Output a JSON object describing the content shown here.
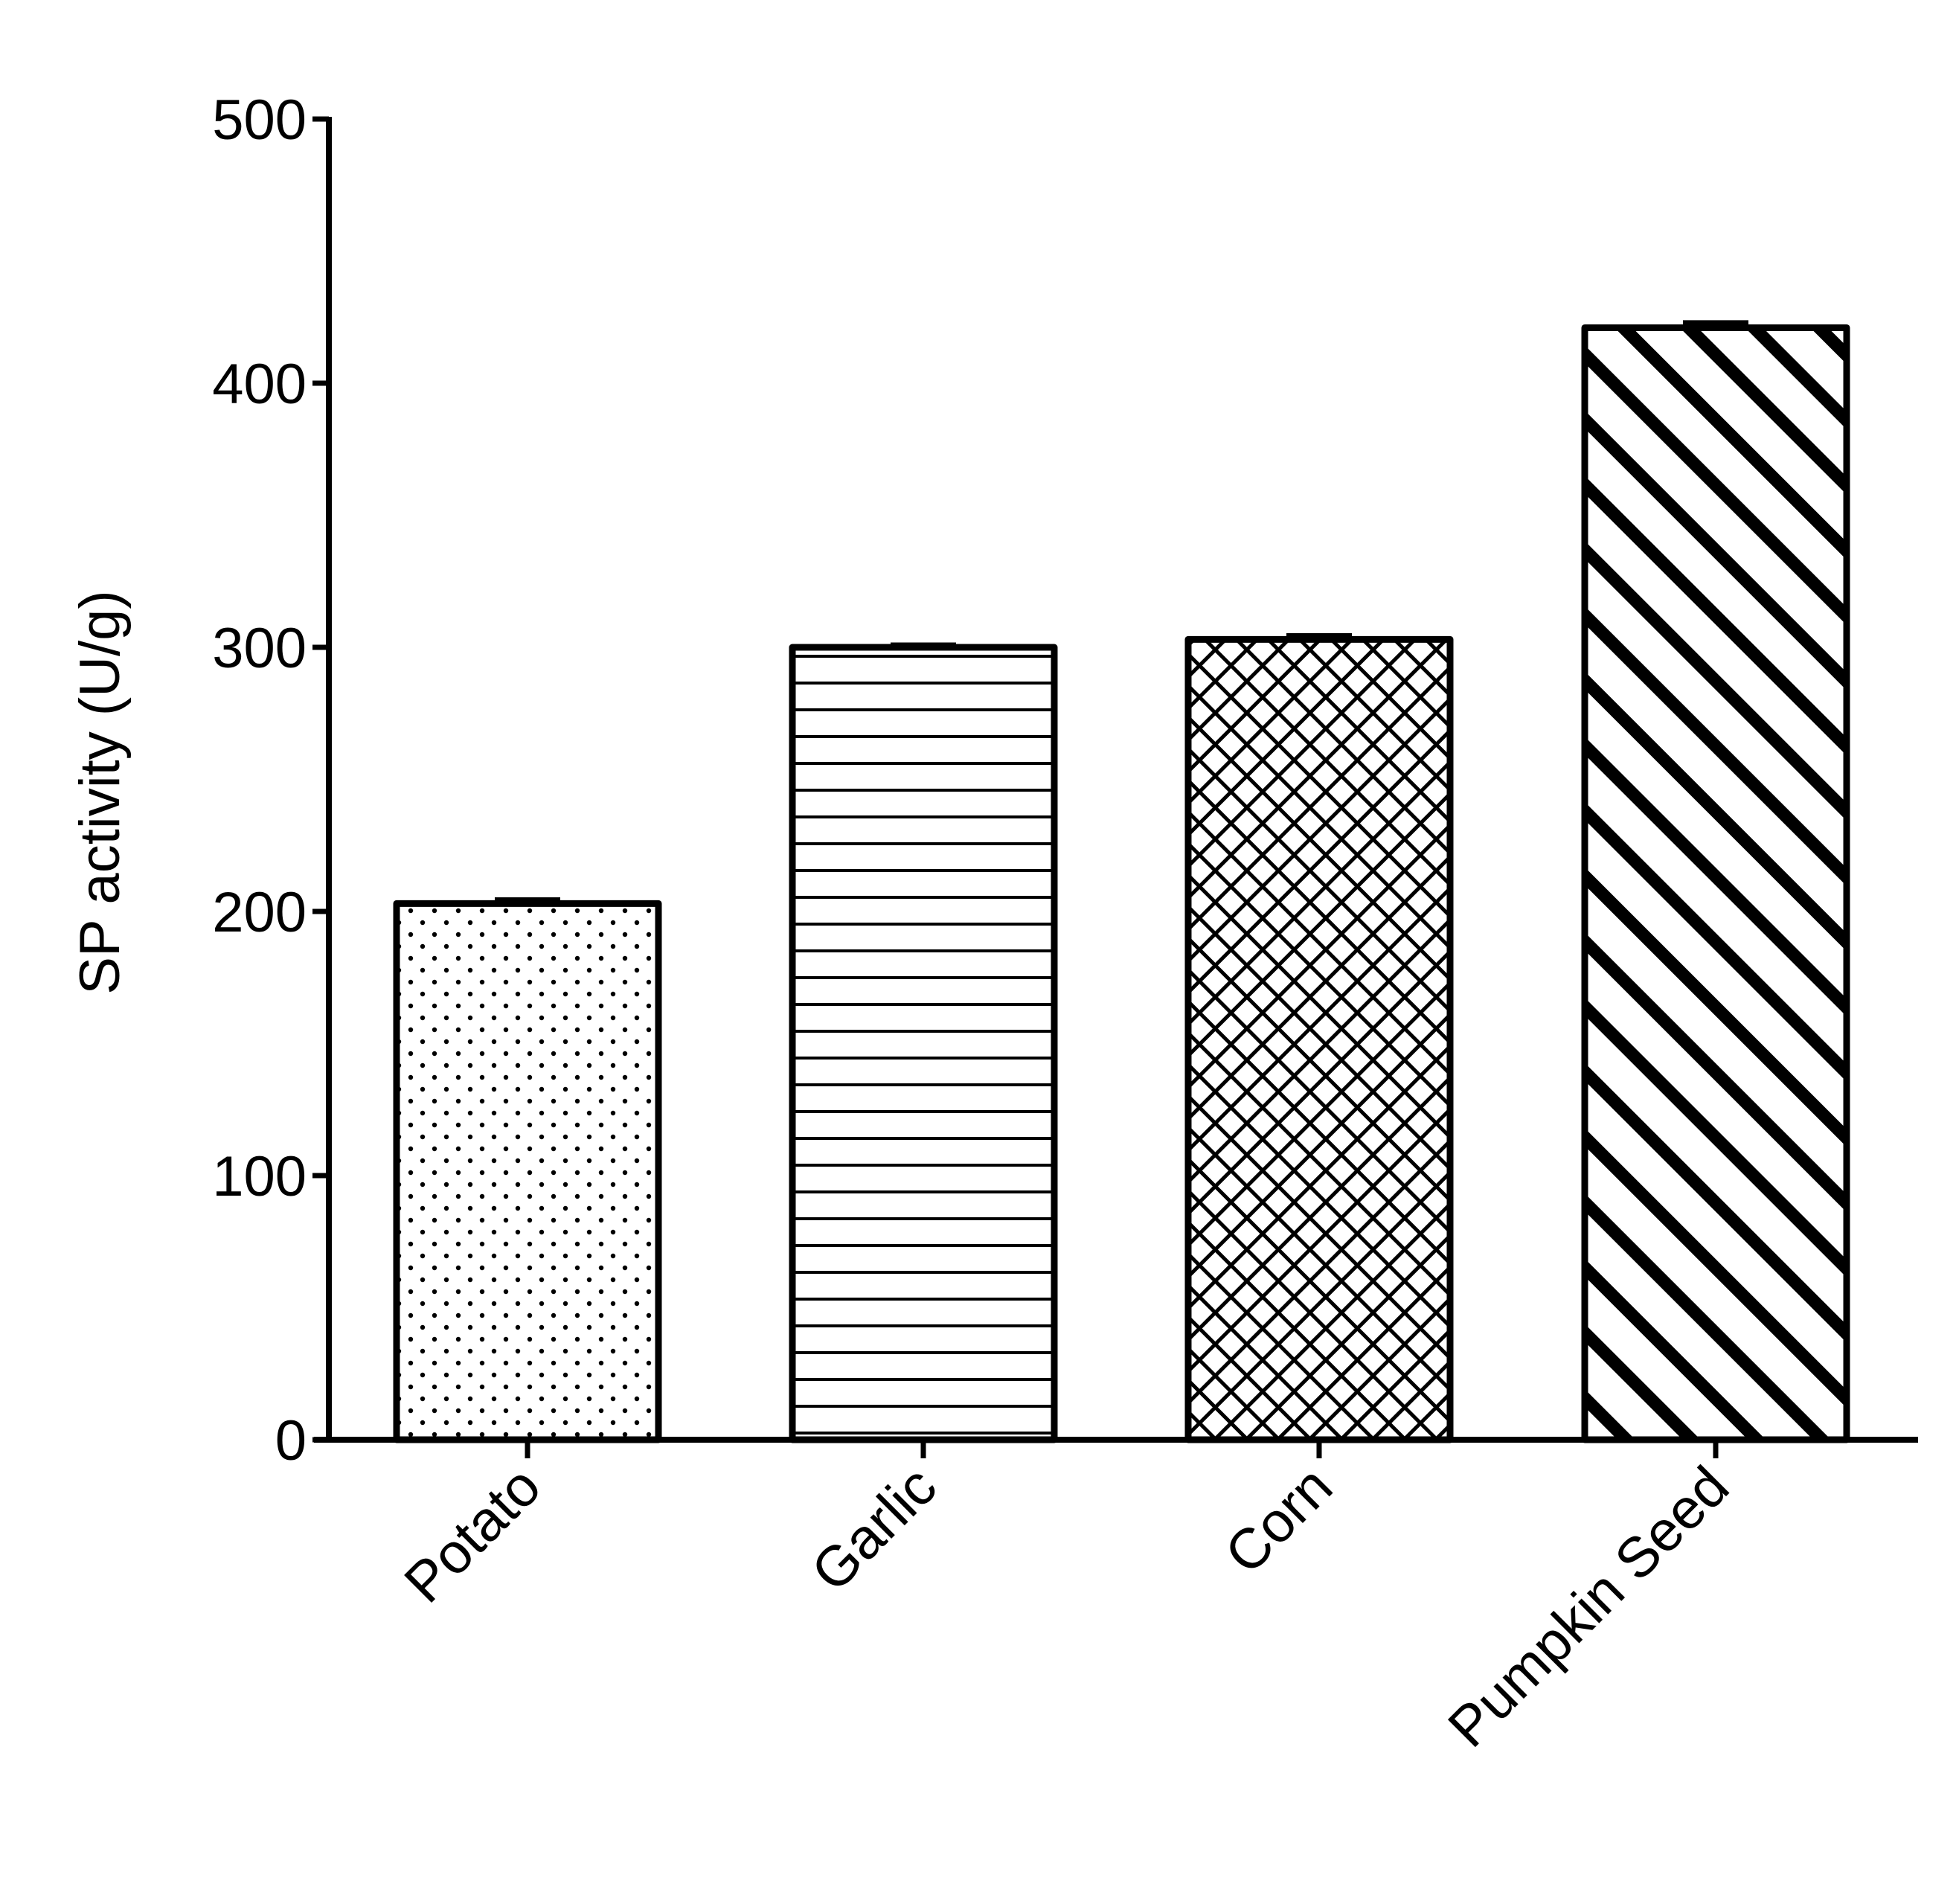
{
  "chart_data": {
    "type": "bar",
    "title": "",
    "xlabel": "",
    "ylabel": "SP activity (U/g)",
    "categories": [
      "Potato",
      "Garlic",
      "Corn",
      "Pumpkin Seed"
    ],
    "values": [
      203,
      300,
      303,
      421
    ],
    "errors": [
      1.5,
      1.0,
      1.5,
      2.0
    ],
    "patterns": [
      "dots",
      "horizontal-lines",
      "crosshatch",
      "diagonal-stripes"
    ],
    "ylim": [
      0,
      500
    ],
    "yticks": [
      0,
      100,
      200,
      300,
      400,
      500
    ],
    "grid": false,
    "legend": "none",
    "colors": {
      "stroke": "#000000",
      "background": "#ffffff"
    }
  }
}
